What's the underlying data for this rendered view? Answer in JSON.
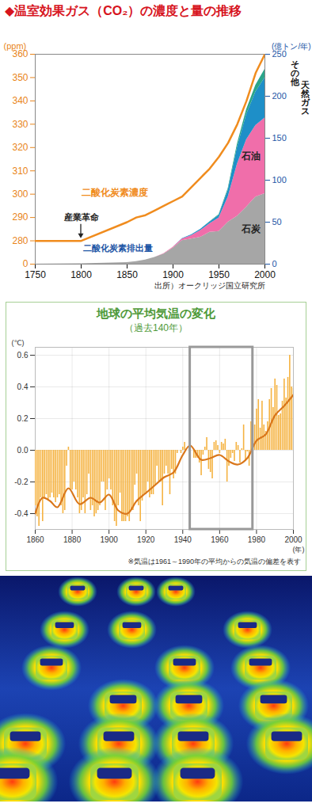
{
  "chart_data": [
    {
      "type": "line",
      "title": "◆温室効果ガス（CO₂）の濃度と量の推移",
      "source": "出所）オークリッジ国立研究所",
      "ylabel": "(ppm)",
      "y2label": "(億トン/年)",
      "x": [
        1750,
        1800,
        1850,
        1860,
        1870,
        1880,
        1890,
        1900,
        1910,
        1920,
        1930,
        1940,
        1950,
        1960,
        1970,
        1980,
        1990,
        2000
      ],
      "xlim": [
        1750,
        2000
      ],
      "xticks": [
        1750,
        1800,
        1850,
        1900,
        1950,
        2000
      ],
      "ylim": [
        0,
        360
      ],
      "yticks": [
        0,
        280,
        290,
        300,
        310,
        320,
        330,
        340,
        350,
        360
      ],
      "y2lim": [
        0,
        250
      ],
      "y2ticks": [
        0,
        50,
        100,
        150,
        200,
        250
      ],
      "stacked": true,
      "annotations": [
        {
          "text": "産業革命",
          "x": 1800
        },
        {
          "text": "二酸化炭素排出量"
        }
      ],
      "series": [
        {
          "name": "二酸化炭素濃度",
          "type": "line",
          "color": "#f08c1e",
          "values": [
            278,
            279,
            288,
            290,
            291,
            293,
            295,
            297,
            299,
            303,
            307,
            311,
            316,
            322,
            330,
            340,
            352,
            360
          ]
        },
        {
          "name": "石炭",
          "type": "area",
          "axis": "y2",
          "color": "#a6a6a6",
          "values": [
            0,
            0.5,
            2,
            3,
            5,
            8,
            12,
            19,
            28,
            30,
            32,
            38,
            39,
            50,
            57,
            68,
            80,
            84
          ]
        },
        {
          "name": "石油",
          "type": "area",
          "axis": "y2",
          "color": "#f06eaa",
          "values": [
            0,
            0,
            0,
            0,
            0,
            0,
            0.5,
            1,
            2,
            4,
            8,
            10,
            16,
            30,
            62,
            80,
            85,
            90
          ]
        },
        {
          "name": "天然ガス",
          "type": "area",
          "axis": "y2",
          "color": "#1e8fc8",
          "values": [
            0,
            0,
            0,
            0,
            0,
            0,
            0,
            0,
            0.5,
            1,
            1.5,
            2,
            3,
            8,
            20,
            30,
            40,
            48
          ]
        },
        {
          "name": "その他",
          "type": "area",
          "axis": "y2",
          "color": "#2aa58a",
          "values": [
            0,
            0,
            0,
            0,
            0,
            0,
            0,
            0,
            0,
            0,
            0,
            0.5,
            1,
            2,
            4,
            6,
            8,
            10
          ]
        }
      ]
    },
    {
      "type": "bar",
      "title": "地球の平均気温の変化",
      "subtitle": "（過去140年）",
      "ylabel": "(℃)",
      "xlabel": "(年)",
      "note": "※気温は1961～1990年の平均からの気温の偏差を表す",
      "xlim": [
        1860,
        2000
      ],
      "xticks": [
        1860,
        1880,
        1900,
        1920,
        1940,
        1960,
        1980,
        2000
      ],
      "ylim": [
        -0.5,
        0.65
      ],
      "yticks": [
        -0.4,
        -0.2,
        {
          "value": 0,
          "label": "0.0"
        },
        0.2,
        0.4,
        0.6
      ],
      "grid": true,
      "highlight": [
        1944,
        1978
      ],
      "series": [
        {
          "type": "bar",
          "color": "#f5b342",
          "x": [
            1860,
            1861,
            1862,
            1863,
            1864,
            1865,
            1866,
            1867,
            1868,
            1869,
            1870,
            1871,
            1872,
            1873,
            1874,
            1875,
            1876,
            1877,
            1878,
            1879,
            1880,
            1881,
            1882,
            1883,
            1884,
            1885,
            1886,
            1887,
            1888,
            1889,
            1890,
            1891,
            1892,
            1893,
            1894,
            1895,
            1896,
            1897,
            1898,
            1899,
            1900,
            1901,
            1902,
            1903,
            1904,
            1905,
            1906,
            1907,
            1908,
            1909,
            1910,
            1911,
            1912,
            1913,
            1914,
            1915,
            1916,
            1917,
            1918,
            1919,
            1920,
            1921,
            1922,
            1923,
            1924,
            1925,
            1926,
            1927,
            1928,
            1929,
            1930,
            1931,
            1932,
            1933,
            1934,
            1935,
            1936,
            1937,
            1938,
            1939,
            1940,
            1941,
            1942,
            1943,
            1944,
            1945,
            1946,
            1947,
            1948,
            1949,
            1950,
            1951,
            1952,
            1953,
            1954,
            1955,
            1956,
            1957,
            1958,
            1959,
            1960,
            1961,
            1962,
            1963,
            1964,
            1965,
            1966,
            1967,
            1968,
            1969,
            1970,
            1971,
            1972,
            1973,
            1974,
            1975,
            1976,
            1977,
            1978,
            1979,
            1980,
            1981,
            1982,
            1983,
            1984,
            1985,
            1986,
            1987,
            1988,
            1989,
            1990,
            1991,
            1992,
            1993,
            1994,
            1995,
            1996,
            1997,
            1998,
            1999,
            2000
          ],
          "values": [
            -0.35,
            -0.42,
            -0.48,
            -0.3,
            -0.45,
            -0.3,
            -0.28,
            -0.32,
            -0.3,
            -0.27,
            -0.3,
            -0.33,
            -0.3,
            -0.28,
            -0.35,
            -0.4,
            -0.38,
            -0.1,
            0.02,
            -0.25,
            -0.25,
            -0.2,
            -0.25,
            -0.3,
            -0.4,
            -0.38,
            -0.3,
            -0.4,
            -0.28,
            -0.15,
            -0.38,
            -0.35,
            -0.42,
            -0.4,
            -0.38,
            -0.35,
            -0.2,
            -0.2,
            -0.38,
            -0.25,
            -0.18,
            -0.25,
            -0.35,
            -0.45,
            -0.48,
            -0.35,
            -0.27,
            -0.45,
            -0.45,
            -0.45,
            -0.42,
            -0.45,
            -0.38,
            -0.38,
            -0.22,
            -0.15,
            -0.35,
            -0.45,
            -0.32,
            -0.28,
            -0.28,
            -0.2,
            -0.3,
            -0.28,
            -0.28,
            -0.22,
            -0.1,
            -0.2,
            -0.2,
            -0.35,
            -0.15,
            -0.1,
            -0.15,
            -0.28,
            -0.12,
            -0.18,
            -0.15,
            -0.02,
            0.0,
            -0.02,
            0.02,
            0.05,
            0.0,
            0.0,
            0.12,
            0.0,
            -0.05,
            -0.05,
            -0.05,
            -0.08,
            -0.16,
            -0.03,
            0.02,
            0.08,
            -0.12,
            -0.14,
            -0.18,
            0.05,
            0.06,
            0.03,
            -0.02,
            0.05,
            0.04,
            0.07,
            -0.2,
            -0.1,
            -0.05,
            -0.02,
            -0.07,
            0.05,
            0.03,
            -0.08,
            0.01,
            0.16,
            -0.07,
            -0.01,
            -0.1,
            0.18,
            0.07,
            0.16,
            0.26,
            0.32,
            0.14,
            0.31,
            0.16,
            0.12,
            0.18,
            0.32,
            0.39,
            0.27,
            0.45,
            0.41,
            0.22,
            0.23,
            0.31,
            0.45,
            0.33,
            0.46,
            0.6,
            0.4,
            0.39
          ]
        },
        {
          "type": "line",
          "color": "#d9761a",
          "x": [
            1860,
            1864,
            1868,
            1872,
            1878,
            1884,
            1890,
            1895,
            1900,
            1905,
            1910,
            1915,
            1920,
            1925,
            1930,
            1935,
            1940,
            1944,
            1950,
            1955,
            1960,
            1965,
            1970,
            1975,
            1980,
            1985,
            1990,
            1995,
            2000
          ],
          "values": [
            -0.4,
            -0.3,
            -0.32,
            -0.36,
            -0.24,
            -0.34,
            -0.3,
            -0.33,
            -0.28,
            -0.38,
            -0.4,
            -0.32,
            -0.27,
            -0.22,
            -0.17,
            -0.14,
            -0.03,
            0.03,
            -0.06,
            -0.05,
            -0.03,
            -0.07,
            -0.09,
            -0.05,
            0.06,
            0.1,
            0.22,
            0.28,
            0.35
          ]
        }
      ]
    }
  ]
}
